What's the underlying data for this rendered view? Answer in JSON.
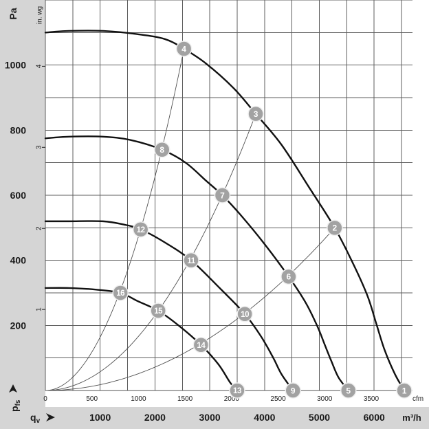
{
  "chart_data": {
    "type": "line",
    "x_axis": {
      "label": {
        "symbol": "q",
        "subscript": "v"
      },
      "unit": "m³/h",
      "range": [
        0,
        6700
      ],
      "ticks": [
        1000,
        2000,
        3000,
        4000,
        5000,
        6000
      ]
    },
    "x_axis_secondary": {
      "unit": "cfm",
      "ticks": [
        0,
        500,
        1000,
        1500,
        2000,
        2500,
        3000,
        3500
      ]
    },
    "y_axis": {
      "label": {
        "symbol": "p",
        "subscript": "fs"
      },
      "unit": "Pa",
      "range": [
        0,
        1200
      ],
      "ticks": [
        200,
        400,
        600,
        800,
        1000
      ]
    },
    "y_axis_secondary": {
      "unit": "in. wg",
      "ticks": [
        1,
        2,
        3,
        4
      ]
    },
    "grid": true,
    "fan_curves": [
      {
        "operating_points": [
          "4",
          "3",
          "2",
          "1"
        ],
        "points": [
          [
            0,
            1100
          ],
          [
            430,
            1105
          ],
          [
            1050,
            1105
          ],
          [
            1680,
            1095
          ],
          [
            2180,
            1080
          ],
          [
            2530,
            1050
          ],
          [
            2930,
            1005
          ],
          [
            3430,
            930
          ],
          [
            3840,
            850
          ],
          [
            4310,
            755
          ],
          [
            4810,
            625
          ],
          [
            5280,
            500
          ],
          [
            5630,
            385
          ],
          [
            5880,
            290
          ],
          [
            6040,
            205
          ],
          [
            6190,
            125
          ],
          [
            6380,
            50
          ],
          [
            6550,
            0
          ]
        ]
      },
      {
        "operating_points": [
          "8",
          "7",
          "6",
          "5"
        ],
        "points": [
          [
            0,
            775
          ],
          [
            430,
            780
          ],
          [
            1050,
            780
          ],
          [
            1550,
            770
          ],
          [
            2130,
            740
          ],
          [
            2560,
            700
          ],
          [
            2930,
            645
          ],
          [
            3230,
            600
          ],
          [
            3560,
            540
          ],
          [
            4000,
            450
          ],
          [
            4440,
            350
          ],
          [
            4750,
            270
          ],
          [
            4970,
            195
          ],
          [
            5100,
            140
          ],
          [
            5220,
            90
          ],
          [
            5350,
            40
          ],
          [
            5530,
            0
          ]
        ]
      },
      {
        "operating_points": [
          "12",
          "11",
          "10",
          "9"
        ],
        "points": [
          [
            0,
            520
          ],
          [
            430,
            520
          ],
          [
            1050,
            520
          ],
          [
            1430,
            510
          ],
          [
            1740,
            495
          ],
          [
            2180,
            455
          ],
          [
            2660,
            400
          ],
          [
            3180,
            315
          ],
          [
            3640,
            235
          ],
          [
            3940,
            165
          ],
          [
            4160,
            100
          ],
          [
            4310,
            50
          ],
          [
            4520,
            0
          ]
        ]
      },
      {
        "operating_points": [
          "16",
          "15",
          "14",
          "13"
        ],
        "points": [
          [
            0,
            315
          ],
          [
            430,
            315
          ],
          [
            930,
            310
          ],
          [
            1370,
            300
          ],
          [
            1680,
            275
          ],
          [
            2060,
            245
          ],
          [
            2430,
            200
          ],
          [
            2840,
            140
          ],
          [
            3160,
            80
          ],
          [
            3370,
            25
          ],
          [
            3500,
            0
          ]
        ]
      }
    ],
    "system_curves": [
      {
        "operating_points": [
          "16",
          "12",
          "8",
          "4"
        ]
      },
      {
        "operating_points": [
          "15",
          "11",
          "7",
          "3"
        ]
      },
      {
        "operating_points": [
          "14",
          "10",
          "6",
          "2"
        ]
      },
      {
        "operating_points": [
          "13",
          "9",
          "5",
          "1"
        ]
      }
    ],
    "operating_points": [
      {
        "label": "1",
        "q": 6550,
        "p": 0
      },
      {
        "label": "2",
        "q": 5280,
        "p": 500
      },
      {
        "label": "3",
        "q": 3840,
        "p": 850
      },
      {
        "label": "4",
        "q": 2530,
        "p": 1050
      },
      {
        "label": "5",
        "q": 5530,
        "p": 0
      },
      {
        "label": "6",
        "q": 4440,
        "p": 350
      },
      {
        "label": "7",
        "q": 3230,
        "p": 600
      },
      {
        "label": "8",
        "q": 2130,
        "p": 740
      },
      {
        "label": "9",
        "q": 4520,
        "p": 0
      },
      {
        "label": "10",
        "q": 3640,
        "p": 235
      },
      {
        "label": "11",
        "q": 2660,
        "p": 400
      },
      {
        "label": "12",
        "q": 1740,
        "p": 495
      },
      {
        "label": "13",
        "q": 3500,
        "p": 0
      },
      {
        "label": "14",
        "q": 2840,
        "p": 140
      },
      {
        "label": "15",
        "q": 2060,
        "p": 245
      },
      {
        "label": "16",
        "q": 1370,
        "p": 300
      }
    ],
    "colors": {
      "fan_curve": "#111111",
      "system_curve": "#505050",
      "grid": "#5c5c5c",
      "point_fill": "#a2a2a2",
      "point_text": "#ffffff",
      "axis_band": "#d5d5d5"
    }
  }
}
